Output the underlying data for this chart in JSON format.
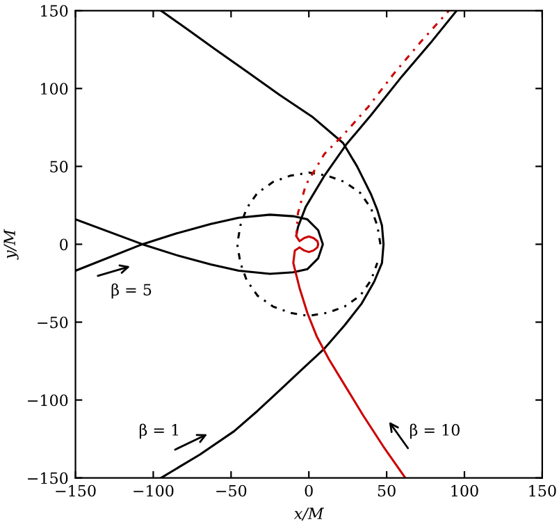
{
  "chart_data": {
    "type": "line",
    "xlabel": "x/M",
    "ylabel": "y/M",
    "xlim": [
      -150,
      150
    ],
    "ylim": [
      -150,
      150
    ],
    "xticks": [
      -150,
      -100,
      -50,
      0,
      50,
      100,
      150
    ],
    "yticks": [
      -150,
      -100,
      -50,
      0,
      50,
      100,
      150
    ],
    "grid": false,
    "legend": false,
    "marker": "none",
    "series": [
      {
        "color": "#000000",
        "line_style": "solid",
        "x": [
          -95,
          -70,
          -48,
          -33,
          -19,
          -4,
          10,
          23,
          34,
          42,
          47,
          48,
          47,
          44,
          40,
          31,
          22,
          2,
          -19,
          -40,
          -60,
          -78,
          -95
        ],
        "values": [
          -150,
          -135,
          -120,
          -107,
          -94,
          -80,
          -67,
          -52,
          -38,
          -24,
          -12,
          0,
          12,
          22,
          32,
          50,
          65,
          82,
          96,
          111,
          125,
          138,
          150
        ]
      },
      {
        "color": "#000000",
        "line_style": "solid",
        "x": [
          -150,
          -107,
          -85,
          -63,
          -45,
          -25,
          -10,
          -1,
          6,
          9,
          6,
          -1,
          -10,
          -25,
          -45,
          -63,
          -85,
          -107,
          -150
        ],
        "values": [
          -17,
          0,
          7,
          13,
          17,
          19,
          18,
          16,
          9,
          0,
          -9,
          -16,
          -18,
          -19,
          -17,
          -13,
          -7,
          0,
          16
        ]
      },
      {
        "color": "#000000",
        "line_style": "solid",
        "x": [
          -8,
          -7,
          -2,
          10,
          24,
          40,
          60,
          78,
          95
        ],
        "values": [
          6,
          11,
          24,
          44,
          64,
          83,
          108,
          129,
          150
        ]
      },
      {
        "color": "#000000",
        "line_style": "dashdot",
        "x": [
          46,
          44,
          40,
          33,
          23,
          12,
          0,
          -12,
          -23,
          -33,
          -40,
          -44,
          -46,
          -44,
          -40,
          -33,
          -23,
          -12,
          0,
          12,
          23,
          33,
          40,
          44
        ],
        "values": [
          0,
          12,
          23,
          33,
          40,
          44,
          46,
          44,
          40,
          33,
          23,
          12,
          0,
          -12,
          -23,
          -33,
          -40,
          -44,
          -46,
          -44,
          -40,
          -33,
          -23,
          -12
        ]
      },
      {
        "color": "#cc0000",
        "line_style": "solid",
        "x": [
          62,
          48,
          35,
          24,
          13,
          5,
          -1,
          -6,
          -10,
          -9,
          -6,
          -3,
          0,
          3,
          5.5,
          6,
          5.5,
          3,
          0,
          -3,
          -6,
          -8
        ],
        "values": [
          -150,
          -130,
          -110,
          -92,
          -74,
          -59,
          -44,
          -28,
          -12,
          -4,
          -2,
          -4,
          -5,
          -4,
          -2,
          0,
          2,
          4,
          5,
          4,
          2,
          5
        ]
      },
      {
        "color": "#cc0000",
        "line_style": "dashdot",
        "x": [
          -8,
          -7,
          -2,
          10,
          22,
          38,
          55,
          72,
          90
        ],
        "values": [
          5,
          20,
          38,
          58,
          70,
          88,
          110,
          130,
          150
        ]
      }
    ],
    "annotations": [
      "β = 5",
      "β = 1",
      "β = 10"
    ]
  }
}
